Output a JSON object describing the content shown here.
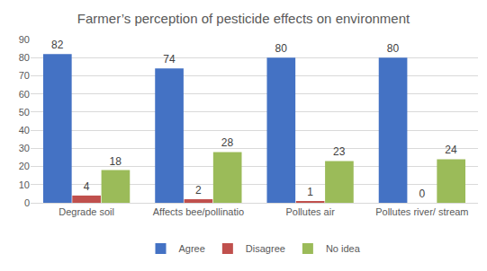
{
  "chart_data": {
    "type": "bar",
    "title": "Farmer’s perception of pesticide effects on environment",
    "categories": [
      "Degrade soil",
      "Affects bee/pollinatio",
      "Pollutes air",
      "Pollutes river/ stream"
    ],
    "series": [
      {
        "name": "Agree",
        "color": "#4472c4",
        "values": [
          82,
          74,
          80,
          80
        ]
      },
      {
        "name": "Disagree",
        "color": "#c0504d",
        "values": [
          4,
          2,
          1,
          0
        ]
      },
      {
        "name": "No idea",
        "color": "#9bbb59",
        "values": [
          18,
          28,
          23,
          24
        ]
      }
    ],
    "ylim": [
      0,
      90
    ],
    "yticks": [
      0,
      10,
      20,
      30,
      40,
      50,
      60,
      70,
      80,
      90
    ],
    "grid": true,
    "legend": "bottom",
    "data_labels": true
  }
}
